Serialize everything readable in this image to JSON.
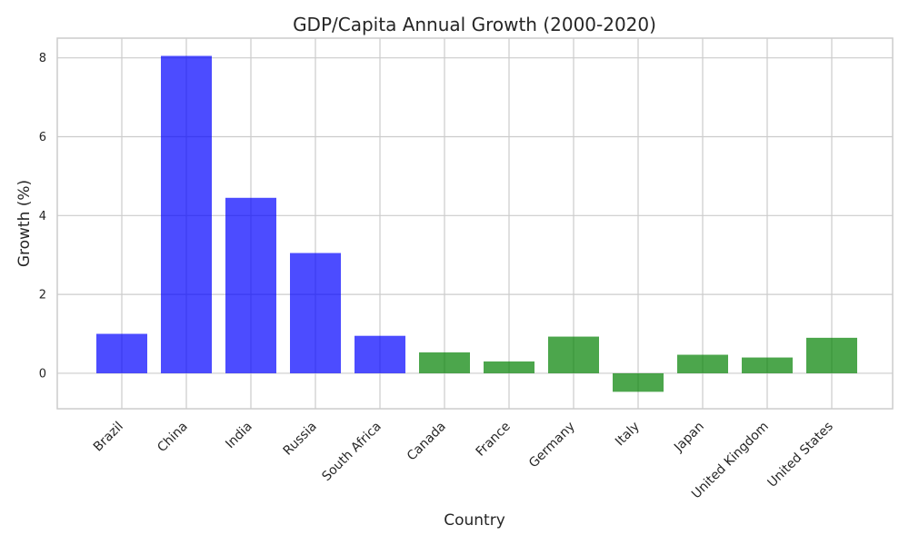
{
  "chart_data": {
    "type": "bar",
    "title": "GDP/Capita Annual Growth (2000-2020)",
    "xlabel": "Country",
    "ylabel": "Growth (%)",
    "ylim": [
      -0.9,
      8.5
    ],
    "yticks": [
      0,
      2,
      4,
      6,
      8
    ],
    "grid": true,
    "categories": [
      "Brazil",
      "China",
      "India",
      "Russia",
      "South Africa",
      "Canada",
      "France",
      "Germany",
      "Italy",
      "Japan",
      "United Kingdom",
      "United States"
    ],
    "values": [
      1.0,
      8.05,
      4.45,
      3.05,
      0.95,
      0.53,
      0.3,
      0.93,
      -0.47,
      0.47,
      0.4,
      0.9
    ],
    "colors": [
      "#0000ff",
      "#0000ff",
      "#0000ff",
      "#0000ff",
      "#0000ff",
      "#008000",
      "#008000",
      "#008000",
      "#008000",
      "#008000",
      "#008000",
      "#008000"
    ]
  }
}
